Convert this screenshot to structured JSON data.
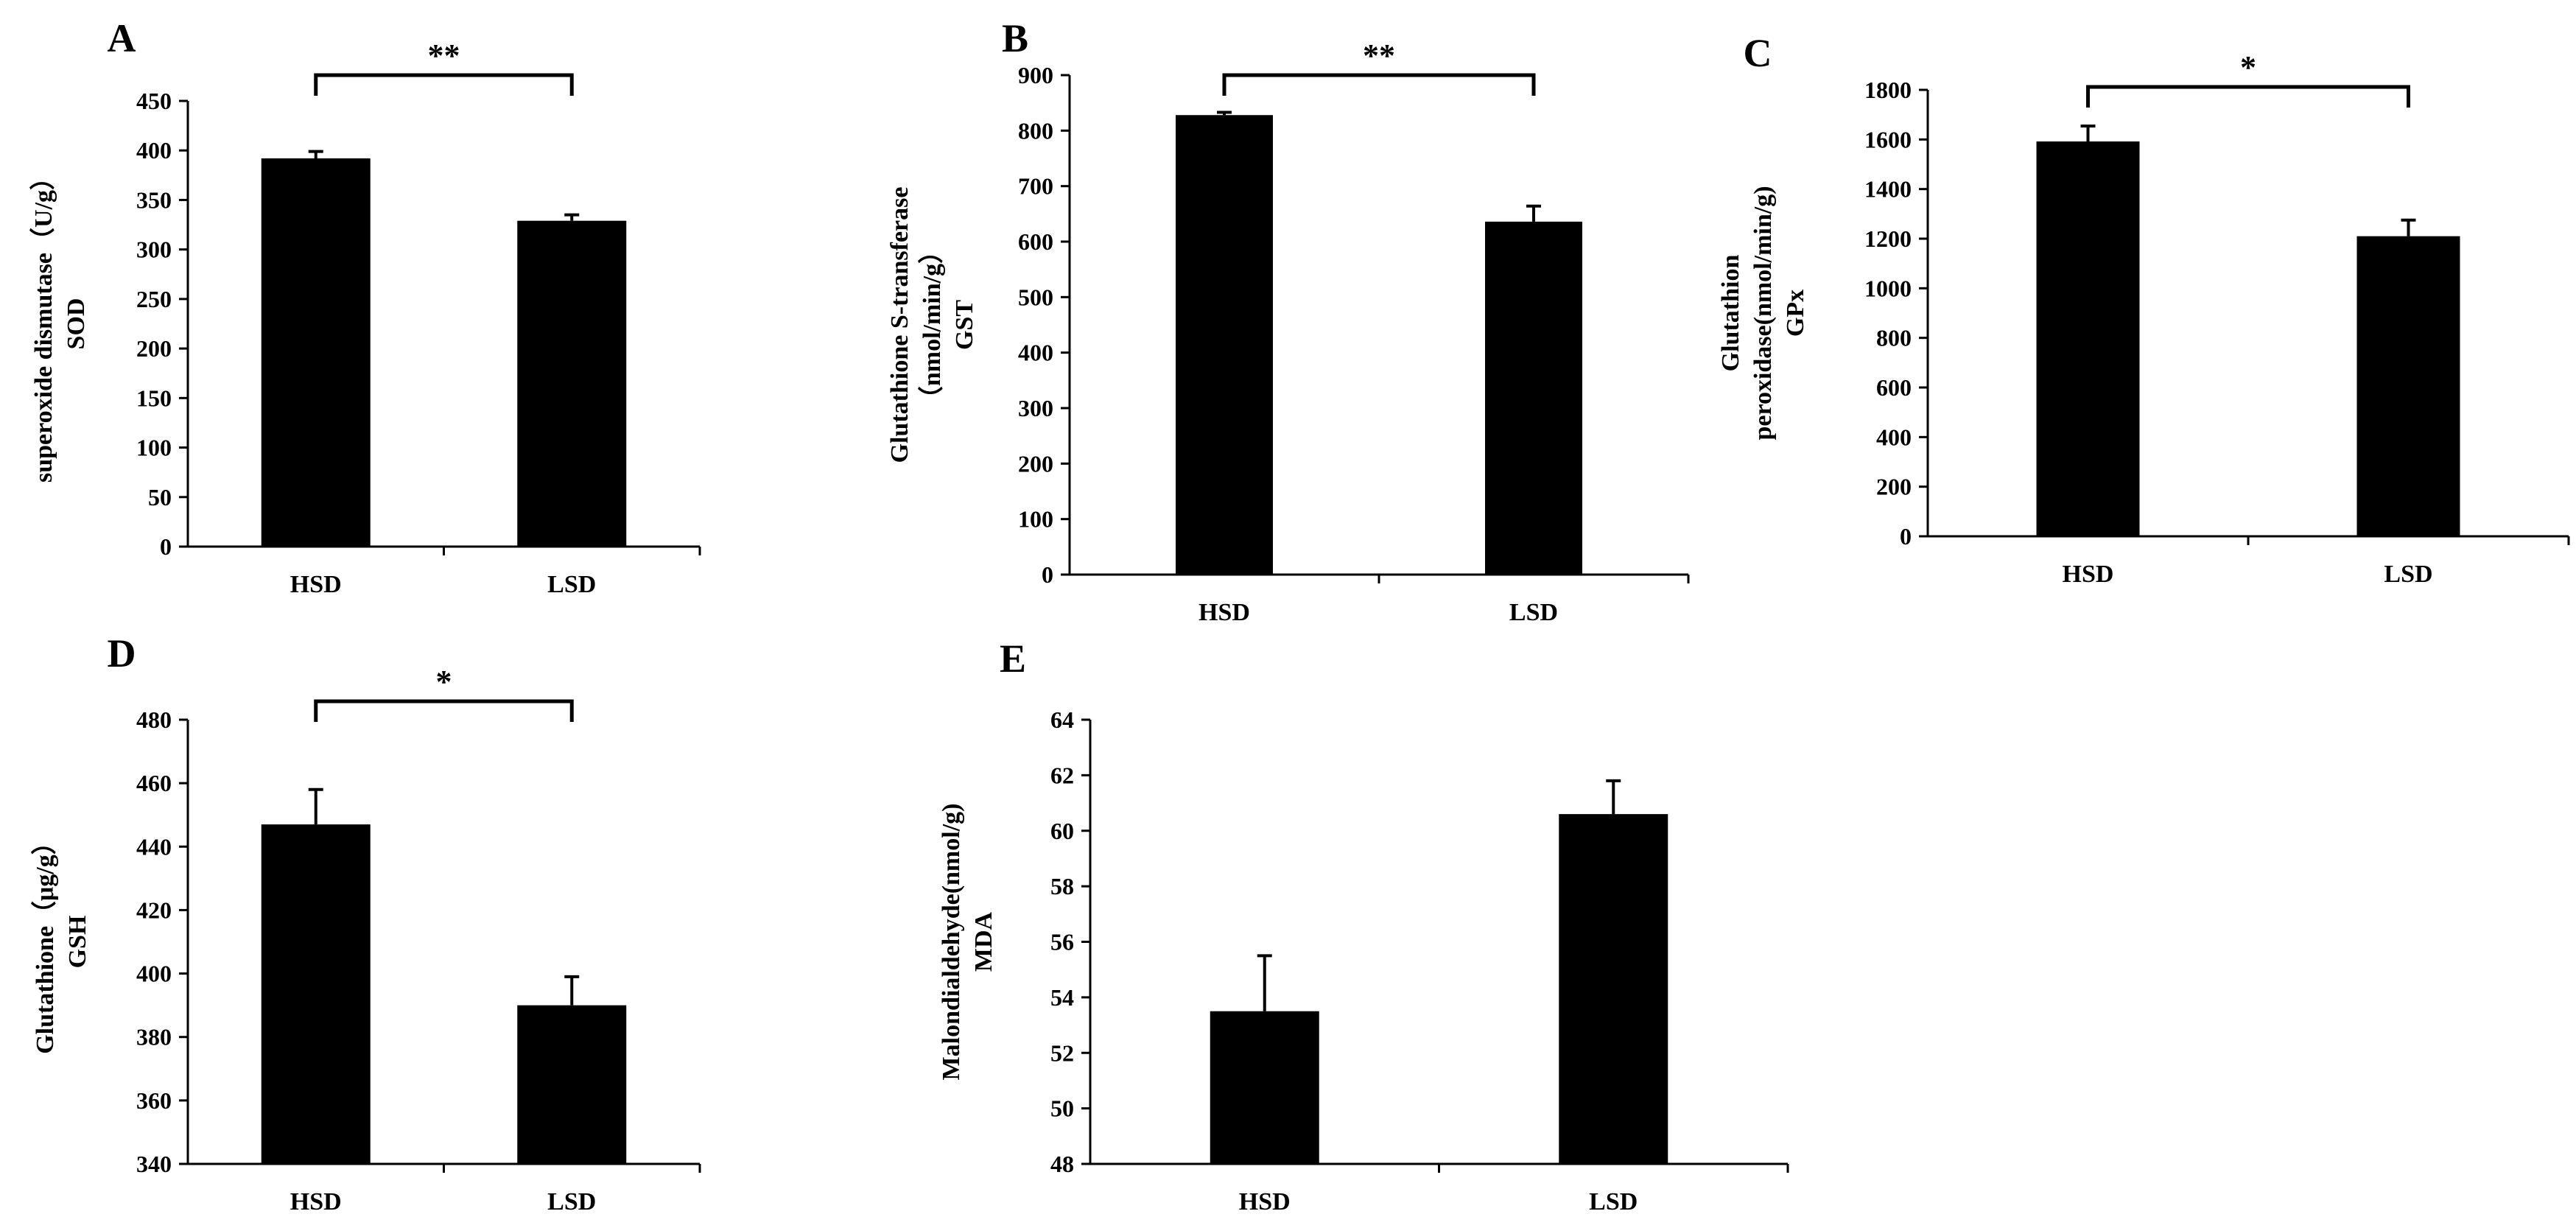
{
  "chart_data": [
    {
      "type": "bar",
      "panel": "A",
      "categories": [
        "HSD",
        "LSD"
      ],
      "values": [
        392,
        329
      ],
      "errors": [
        7,
        6
      ],
      "ylim": [
        0,
        450
      ],
      "yticks": [
        0,
        50,
        100,
        150,
        200,
        250,
        300,
        350,
        400,
        450
      ],
      "ylabel_lines": [
        "superoxide dismutase（U/g）",
        "SOD"
      ],
      "significance": "**"
    },
    {
      "type": "bar",
      "panel": "B",
      "categories": [
        "HSD",
        "LSD"
      ],
      "values": [
        828,
        636
      ],
      "errors": [
        5,
        28
      ],
      "ylim": [
        0,
        900
      ],
      "yticks": [
        0,
        100,
        200,
        300,
        400,
        500,
        600,
        700,
        800,
        900
      ],
      "ylabel_lines": [
        "Glutathione S-transferase",
        "（nmol/min/g）",
        "GST"
      ],
      "significance": "**"
    },
    {
      "type": "bar",
      "panel": "C",
      "categories": [
        "HSD",
        "LSD"
      ],
      "values": [
        1592,
        1210
      ],
      "errors": [
        62,
        65
      ],
      "ylim": [
        0,
        1800
      ],
      "yticks": [
        0,
        200,
        400,
        600,
        800,
        1000,
        1200,
        1400,
        1600,
        1800
      ],
      "ylabel_lines": [
        "Glutathion",
        "peroxidase(nmol/min/g)",
        "GPx"
      ],
      "significance": "*"
    },
    {
      "type": "bar",
      "panel": "D",
      "categories": [
        "HSD",
        "LSD"
      ],
      "values": [
        447,
        390
      ],
      "errors": [
        11,
        9
      ],
      "ylim": [
        340,
        480
      ],
      "yticks": [
        340,
        360,
        380,
        400,
        420,
        440,
        460,
        480
      ],
      "ylabel_lines": [
        "Glutathione（μg/g）",
        "GSH"
      ],
      "significance": "*"
    },
    {
      "type": "bar",
      "panel": "E",
      "categories": [
        "HSD",
        "LSD"
      ],
      "values": [
        53.5,
        60.6
      ],
      "errors": [
        2.0,
        1.2
      ],
      "ylim": [
        48,
        64
      ],
      "yticks": [
        48,
        50,
        52,
        54,
        56,
        58,
        60,
        62,
        64
      ],
      "ylabel_lines": [
        "Malondialdehyde(nmol/g)",
        "MDA"
      ],
      "significance": ""
    }
  ]
}
